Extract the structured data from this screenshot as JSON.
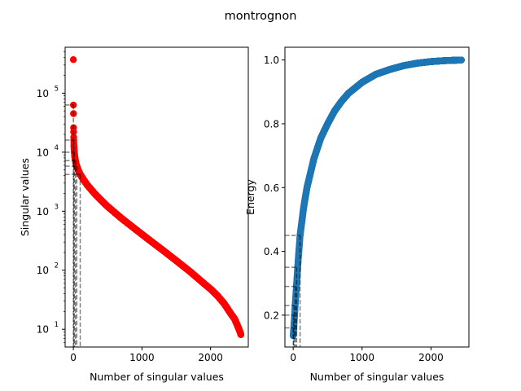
{
  "figure": {
    "title": "montrognon"
  },
  "chart_data": [
    {
      "type": "scatter",
      "xlabel": "Number of singular values",
      "ylabel": "Singular values",
      "yscale": "log",
      "xlim": [
        -120,
        2550
      ],
      "ylim": [
        5,
        600000
      ],
      "xticks": [
        0,
        1000,
        2000
      ],
      "yticks": [
        {
          "value": 10,
          "base": "10",
          "exp": "1"
        },
        {
          "value": 100,
          "base": "10",
          "exp": "2"
        },
        {
          "value": 1000,
          "base": "10",
          "exp": "3"
        },
        {
          "value": 10000,
          "base": "10",
          "exp": "4"
        },
        {
          "value": 100000,
          "base": "10",
          "exp": "5"
        }
      ],
      "color": "#ff0000",
      "n_points": 2443,
      "x": [
        0,
        1,
        2,
        3,
        4,
        5,
        6,
        8,
        10,
        13,
        16,
        20,
        25,
        30,
        40,
        50,
        60,
        70,
        80,
        100,
        150,
        200,
        300,
        400,
        500,
        700,
        900,
        1100,
        1300,
        1500,
        1700,
        1900,
        2000,
        2100,
        2200,
        2300,
        2350,
        2400,
        2430,
        2443
      ],
      "y": [
        370000,
        63000,
        45000,
        26000,
        22000,
        18000,
        16000,
        13000,
        12000,
        10500,
        9500,
        8500,
        7800,
        7200,
        6300,
        5800,
        5400,
        5000,
        4700,
        4200,
        3400,
        2800,
        2050,
        1550,
        1200,
        760,
        500,
        330,
        220,
        145,
        95,
        60,
        48,
        37,
        27,
        18,
        15,
        11,
        9,
        8
      ],
      "reference_lines": [
        {
          "x": 1,
          "y": 63000
        },
        {
          "x": 6,
          "y": 16000
        },
        {
          "x": 14,
          "y": 10000
        },
        {
          "x": 30,
          "y": 7200
        },
        {
          "x": 50,
          "y": 5800
        },
        {
          "x": 100,
          "y": 4200
        }
      ],
      "grid": false
    },
    {
      "type": "scatter",
      "xlabel": "Number of singular values",
      "ylabel": "Energy",
      "yscale": "linear",
      "xlim": [
        -120,
        2550
      ],
      "ylim": [
        0.1,
        1.04
      ],
      "xticks": [
        0,
        1000,
        2000
      ],
      "yticks": [
        0.2,
        0.4,
        0.6,
        0.8,
        1.0
      ],
      "color": "#1f77b4",
      "n_points": 2443,
      "x": [
        0,
        10,
        20,
        30,
        50,
        75,
        100,
        150,
        200,
        300,
        400,
        500,
        600,
        700,
        800,
        1000,
        1200,
        1400,
        1600,
        1800,
        2000,
        2200,
        2443
      ],
      "y": [
        0.135,
        0.165,
        0.2,
        0.235,
        0.3,
        0.38,
        0.45,
        0.535,
        0.6,
        0.69,
        0.755,
        0.8,
        0.84,
        0.87,
        0.895,
        0.93,
        0.955,
        0.97,
        0.982,
        0.99,
        0.995,
        0.998,
        1.0
      ],
      "reference_lines": [
        {
          "x": 1,
          "y": 0.16
        },
        {
          "x": 6,
          "y": 0.2
        },
        {
          "x": 14,
          "y": 0.23
        },
        {
          "x": 30,
          "y": 0.29
        },
        {
          "x": 50,
          "y": 0.35
        },
        {
          "x": 100,
          "y": 0.45
        }
      ],
      "grid": false
    }
  ]
}
